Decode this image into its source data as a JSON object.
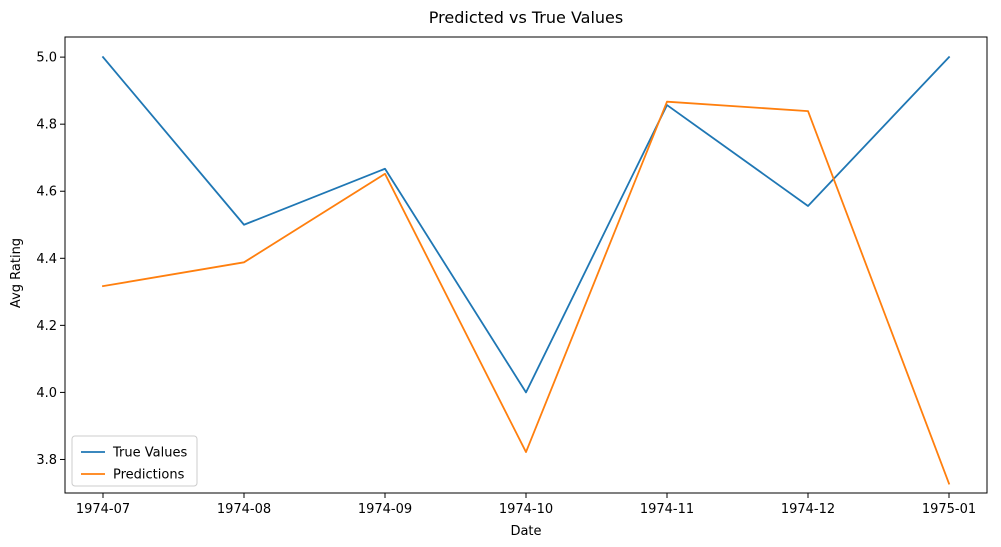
{
  "chart_data": {
    "type": "line",
    "title": "Predicted vs True Values",
    "xlabel": "Date",
    "ylabel": "Avg Rating",
    "x": [
      "1974-07",
      "1974-08",
      "1974-09",
      "1974-10",
      "1974-11",
      "1974-12",
      "1975-01"
    ],
    "xlim": [
      "1974-07",
      "1975-01"
    ],
    "ylim": [
      3.7,
      5.06
    ],
    "yticks": [
      3.8,
      4.0,
      4.2,
      4.4,
      4.6,
      4.8,
      5.0
    ],
    "ytick_labels": [
      "3.8",
      "4.0",
      "4.2",
      "4.4",
      "4.6",
      "4.8",
      "5.0"
    ],
    "grid": false,
    "legend_position": "lower-left",
    "series": [
      {
        "name": "True Values",
        "color": "#1f77b4",
        "values": [
          5.0,
          4.5,
          4.667,
          4.0,
          4.857,
          4.556,
          5.0
        ]
      },
      {
        "name": "Predictions",
        "color": "#ff7f0e",
        "values": [
          4.317,
          4.388,
          4.652,
          3.822,
          4.867,
          4.839,
          3.728
        ]
      }
    ]
  }
}
